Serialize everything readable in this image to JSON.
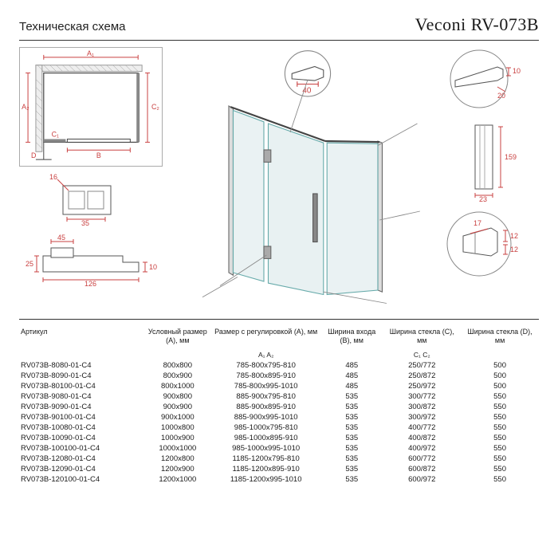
{
  "header": {
    "left": "Техническая схема",
    "right": "Veconi RV-073B"
  },
  "plan": {
    "labels": {
      "A1": "A₁",
      "A2": "A₂",
      "B": "B",
      "C1": "C₁",
      "C2": "C₂",
      "D": "D"
    }
  },
  "detail_hinge": {
    "d1": "16",
    "d2": "35"
  },
  "detail_bracket": {
    "d1": "45",
    "d2": "25",
    "d3": "126",
    "d4": "10"
  },
  "detail_bar_top": {
    "d1": "40"
  },
  "detail_tube": {
    "d1": "10",
    "d2": "20"
  },
  "detail_profile": {
    "d1": "159",
    "d2": "23"
  },
  "detail_clip": {
    "d1": "17",
    "d2": "12",
    "d3": "12"
  },
  "table": {
    "columns": [
      "Артикул",
      "Условный размер (A), мм",
      "Размер с регулировкой (A), мм",
      "Ширина входа (B), мм",
      "Ширина стекла (C), мм",
      "Ширина стекла (D), мм"
    ],
    "sub": [
      "",
      "",
      "A₁              A₂",
      "",
      "C₁     C₂",
      ""
    ],
    "rows": [
      [
        "RV073B-8080-01-C4",
        "800x800",
        "785-800x795-810",
        "485",
        "250/772",
        "500"
      ],
      [
        "RV073B-8090-01-C4",
        "800x900",
        "785-800x895-910",
        "485",
        "250/872",
        "500"
      ],
      [
        "RV073B-80100-01-C4",
        "800x1000",
        "785-800x995-1010",
        "485",
        "250/972",
        "500"
      ],
      [
        "RV073B-9080-01-C4",
        "900x800",
        "885-900x795-810",
        "535",
        "300/772",
        "550"
      ],
      [
        "RV073B-9090-01-C4",
        "900x900",
        "885-900x895-910",
        "535",
        "300/872",
        "550"
      ],
      [
        "RV073B-90100-01-C4",
        "900x1000",
        "885-900x995-1010",
        "535",
        "300/972",
        "550"
      ],
      [
        "RV073B-10080-01-C4",
        "1000x800",
        "985-1000x795-810",
        "535",
        "400/772",
        "550"
      ],
      [
        "RV073B-10090-01-C4",
        "1000x900",
        "985-1000x895-910",
        "535",
        "400/872",
        "550"
      ],
      [
        "RV073B-100100-01-C4",
        "1000x1000",
        "985-1000x995-1010",
        "535",
        "400/972",
        "550"
      ],
      [
        "RV073B-12080-01-C4",
        "1200x800",
        "1185-1200x795-810",
        "535",
        "600/772",
        "550"
      ],
      [
        "RV073B-12090-01-C4",
        "1200x900",
        "1185-1200x895-910",
        "535",
        "600/872",
        "550"
      ],
      [
        "RV073B-120100-01-C4",
        "1200x1000",
        "1185-1200x995-1010",
        "535",
        "600/972",
        "550"
      ]
    ]
  },
  "colors": {
    "dim": "#c94040",
    "line": "#555555",
    "glass": "#d5e5e8"
  }
}
